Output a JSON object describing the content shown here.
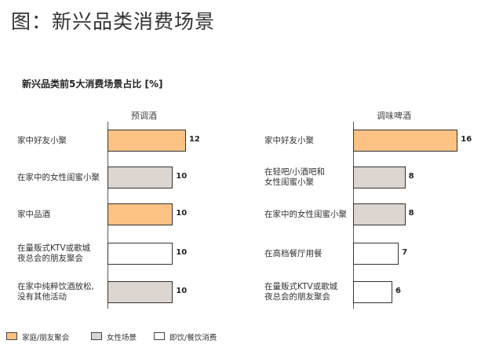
{
  "title": "图：新兴品类消费场景",
  "chart_data": [
    {
      "type": "bar",
      "orientation": "horizontal",
      "title": "新兴品类前5大消费场景占比 [%]",
      "header": "预调酒",
      "categories": [
        "家中好友小聚",
        "在家中的女性闺蜜小聚",
        "家中品酒",
        "在量贩式KTV或歌城\n夜总会的朋友聚会",
        "在家中纯粹饮酒放松,\n没有其他活动"
      ],
      "values": [
        12,
        10,
        10,
        10,
        10
      ],
      "groups": [
        "家庭/朋友聚会",
        "女性场景",
        "家庭/朋友聚会",
        "即饮/餐饮消费",
        "女性场景"
      ]
    },
    {
      "type": "bar",
      "orientation": "horizontal",
      "header": "调味啤酒",
      "categories": [
        "家中好友小聚",
        "在轻吧/小酒吧和\n女性闺蜜小聚",
        "在家中的女性闺蜜小聚",
        "在高档餐厅用餐",
        "在量贩式KTV或歌城\n夜总会的朋友聚会"
      ],
      "values": [
        16,
        8,
        8,
        7,
        6
      ],
      "groups": [
        "家庭/朋友聚会",
        "女性场景",
        "女性场景",
        "即饮/餐饮消费",
        "即饮/餐饮消费"
      ]
    }
  ],
  "legend": [
    {
      "label": "家庭/朋友聚会",
      "color": "#FBC283"
    },
    {
      "label": "女性场景",
      "color": "#DDD5CF"
    },
    {
      "label": "即饮/餐饮消费",
      "color": "#FFFFFF"
    }
  ]
}
